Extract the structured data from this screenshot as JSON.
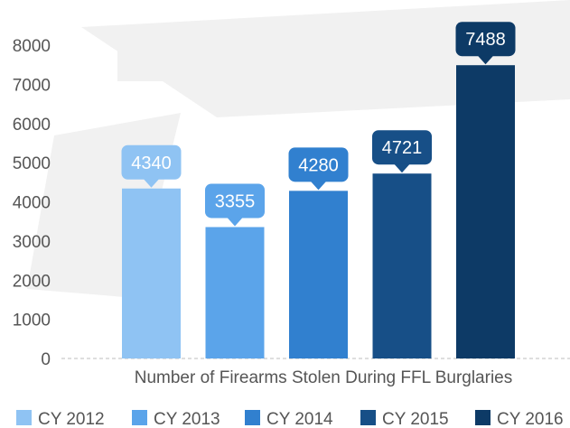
{
  "chart_data": {
    "type": "bar",
    "title": "",
    "xlabel": "Number of Firearms Stolen During FFL Burglaries",
    "ylabel": "",
    "ylim": [
      0,
      8000
    ],
    "yticks": [
      0,
      1000,
      2000,
      3000,
      4000,
      5000,
      6000,
      7000,
      8000
    ],
    "grid": false,
    "legend_position": "bottom",
    "categories": [
      "CY 2012",
      "CY 2013",
      "CY 2014",
      "CY 2015",
      "CY 2016"
    ],
    "values": [
      4340,
      3355,
      4280,
      4721,
      7488
    ],
    "data_labels": [
      "4340",
      "3355",
      "4280",
      "4721",
      "7488"
    ],
    "colors": [
      "#8fc3f3",
      "#5ba4ea",
      "#3180cf",
      "#174f87",
      "#0d3a66"
    ]
  }
}
